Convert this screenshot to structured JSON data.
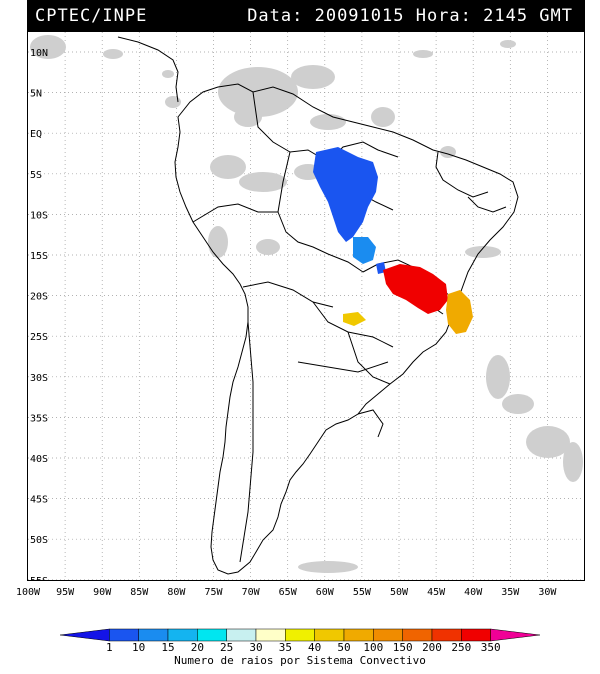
{
  "header": {
    "source": "CPTEC/INPE",
    "datetime": "Data: 20091015 Hora: 2145 GMT"
  },
  "map": {
    "lat_labels": [
      "10N",
      "5N",
      "EQ",
      "5S",
      "10S",
      "15S",
      "20S",
      "25S",
      "30S",
      "35S",
      "40S",
      "45S",
      "50S",
      "55S"
    ],
    "lon_labels": [
      "100W",
      "95W",
      "90W",
      "85W",
      "80W",
      "75W",
      "70W",
      "65W",
      "60W",
      "55W",
      "50W",
      "45W",
      "40W",
      "35W",
      "30W"
    ],
    "background_color": "#ffffff",
    "cloud_color": "#c8c8c8",
    "coastline_color": "#000000"
  },
  "colorbar": {
    "ticks": [
      "1",
      "10",
      "15",
      "20",
      "25",
      "30",
      "35",
      "40",
      "50",
      "100",
      "150",
      "200",
      "250",
      "350"
    ],
    "label": "Numero de raios por Sistema Convectivo",
    "colors": [
      "#1414e6",
      "#1a55f0",
      "#1a8cf0",
      "#14b4f0",
      "#00e6f0",
      "#c8f0f0",
      "#ffffc8",
      "#f0f000",
      "#f0c800",
      "#f0aa00",
      "#f08c00",
      "#f06400",
      "#f03200",
      "#f00000",
      "#f00096"
    ]
  }
}
